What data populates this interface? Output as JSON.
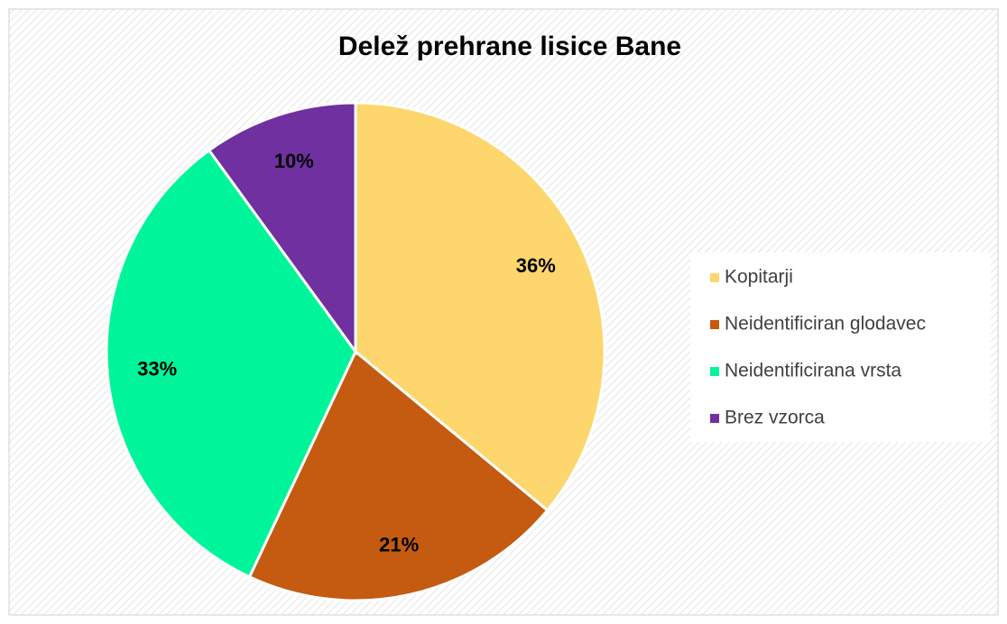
{
  "chart_data": {
    "type": "pie",
    "title": "Delež prehrane lisice Bane",
    "categories": [
      "Kopitarji",
      "Neidentificiran glodavec",
      "Neidentificirana vrsta",
      "Brez vzorca"
    ],
    "values": [
      36,
      21,
      33,
      10
    ],
    "value_labels": [
      "36%",
      "21%",
      "33%",
      "10%"
    ],
    "colors": [
      "#fdd66e",
      "#c55a11",
      "#00f59a",
      "#7030a0"
    ],
    "legend": "right"
  }
}
